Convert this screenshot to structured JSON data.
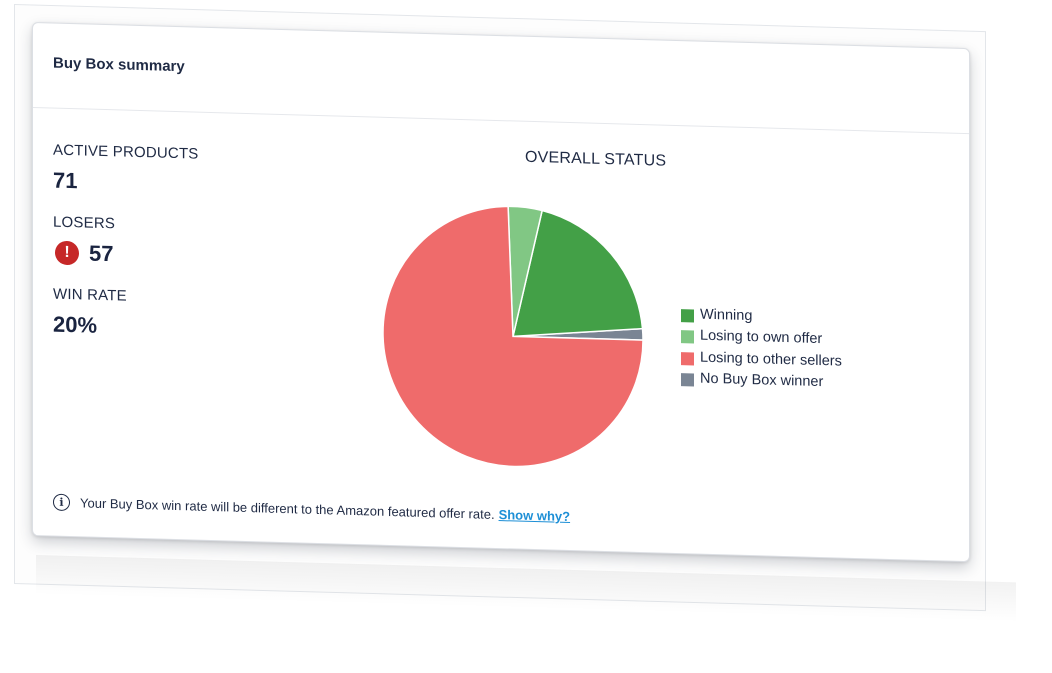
{
  "card": {
    "title": "Buy Box summary"
  },
  "metrics": {
    "active_products": {
      "label": "ACTIVE PRODUCTS",
      "value": "71"
    },
    "losers": {
      "label": "LOSERS",
      "value": "57",
      "icon": "alert-icon"
    },
    "win_rate": {
      "label": "WIN RATE",
      "value": "20%"
    }
  },
  "chart_data": {
    "type": "pie",
    "title": "OVERALL STATUS",
    "start_angle_deg": 0,
    "direction": "counterclockwise",
    "slices": [
      {
        "label": "No Buy Box winner",
        "value": 1.4,
        "color": "#7a8594"
      },
      {
        "label": "Winning",
        "value": 20,
        "color": "#43a047"
      },
      {
        "label": "Losing to own offer",
        "value": 4.2,
        "color": "#81c784"
      },
      {
        "label": "Losing to other sellers",
        "value": 74.4,
        "color": "#ef6b6b"
      }
    ],
    "legend_order": [
      "Winning",
      "Losing to own offer",
      "Losing to other sellers",
      "No Buy Box winner"
    ],
    "legend_position": "right"
  },
  "footer": {
    "icon": "info-icon",
    "note": "Your Buy Box win rate will be different to the Amazon featured offer rate.",
    "link": "Show why?"
  }
}
